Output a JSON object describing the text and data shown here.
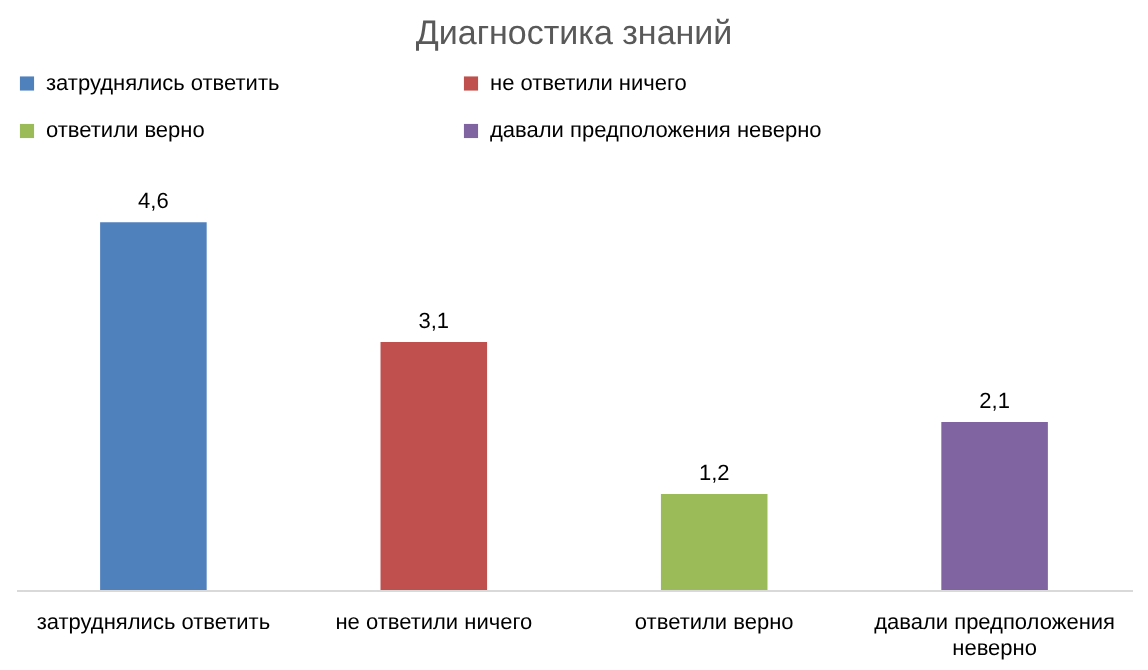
{
  "chart_data": {
    "type": "bar",
    "title": "Диагностика знаний",
    "categories": [
      "затруднялись ответить",
      "не ответили ничего",
      "ответили  верно",
      "давали предположения неверно"
    ],
    "series": [
      {
        "name": "затруднялись ответить",
        "color": "#4f81bd",
        "values": [
          4.6,
          null,
          null,
          null
        ],
        "value_labels": [
          "4,6",
          null,
          null,
          null
        ]
      },
      {
        "name": "не ответили ничего",
        "color": "#c0504d",
        "values": [
          null,
          3.1,
          null,
          null
        ],
        "value_labels": [
          null,
          "3,1",
          null,
          null
        ]
      },
      {
        "name": "ответили  верно",
        "color": "#9bbb59",
        "values": [
          null,
          null,
          1.2,
          null
        ],
        "value_labels": [
          null,
          null,
          "1,2",
          null
        ]
      },
      {
        "name": "давали предположения неверно",
        "color": "#8064a2",
        "values": [
          null,
          null,
          null,
          2.1
        ],
        "value_labels": [
          null,
          null,
          null,
          "2,1"
        ]
      }
    ],
    "legend": "top",
    "grid": false
  }
}
